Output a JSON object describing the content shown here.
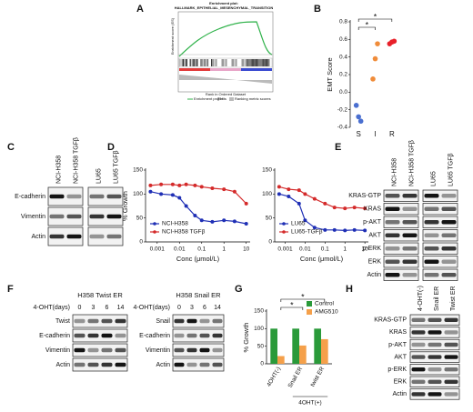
{
  "panel_labels": [
    "A",
    "B",
    "C",
    "D",
    "E",
    "F",
    "G",
    "H"
  ],
  "enrichment": {
    "title": "Enrichment plot:",
    "subtitle": "HALLMARK_EPITHELIAL_MESENCHYMAL_TRANSITION",
    "y_label": "Enrichment score (ES)",
    "x_label": "Rank in Ordered Dataset",
    "legend": [
      "Enrichment profile",
      "Hits",
      "Ranking metric scores"
    ]
  },
  "chart_data": [
    {
      "type": "scatter",
      "y_label": "EMT Score",
      "categories": [
        "S",
        "I",
        "R"
      ],
      "values": [
        [
          -0.15,
          -0.28,
          -0.33
        ],
        [
          0.15,
          0.38,
          0.55
        ],
        [
          0.55,
          0.57,
          0.58
        ]
      ],
      "colors": [
        "#4a6fd0",
        "#f08c3a",
        "#e8202a"
      ],
      "ylim": [
        -0.4,
        0.8
      ],
      "yticks": [
        -0.4,
        -0.2,
        {
          "value": 0,
          "label": "0.0"
        },
        0.2,
        0.4,
        0.6,
        0.8
      ],
      "annotations": [
        "*",
        "*"
      ]
    },
    {
      "type": "line",
      "x_log": true,
      "y_label": "% Growth",
      "x_label": "Conc (μmol/L)",
      "legend": "lower left",
      "x": [
        0.0005,
        0.0015,
        0.005,
        0.01,
        0.02,
        0.05,
        0.1,
        0.3,
        1,
        3,
        10
      ],
      "xlim": [
        0.0003,
        15
      ],
      "xticks": [
        0.001,
        0.01,
        0.1,
        1,
        10
      ],
      "ylim": [
        0,
        150
      ],
      "yticks": [
        0,
        50,
        100,
        150
      ],
      "series": [
        {
          "name": "NCI-H358",
          "color": "#1f2fb5",
          "values": [
            105,
            100,
            98,
            92,
            75,
            55,
            45,
            42,
            45,
            43,
            38
          ]
        },
        {
          "name": "NCI-H358 TGFβ",
          "color": "#d42a2a",
          "values": [
            118,
            120,
            120,
            118,
            120,
            118,
            115,
            112,
            110,
            105,
            80
          ]
        }
      ]
    },
    {
      "type": "line",
      "x_log": true,
      "x_label": "Conc (μmol/L)",
      "legend": "lower left",
      "x": [
        0.0005,
        0.0015,
        0.005,
        0.01,
        0.03,
        0.1,
        0.3,
        1,
        3,
        10
      ],
      "xlim": [
        0.0003,
        15
      ],
      "xticks": [
        0.001,
        0.01,
        0.1,
        1,
        10
      ],
      "ylim": [
        0,
        150
      ],
      "yticks": [
        0,
        50,
        100,
        150
      ],
      "series": [
        {
          "name": "LU65",
          "color": "#1f2fb5",
          "values": [
            100,
            95,
            80,
            45,
            30,
            25,
            25,
            24,
            25,
            24
          ]
        },
        {
          "name": "LU65-TGFβ",
          "color": "#d42a2a",
          "values": [
            115,
            110,
            108,
            100,
            90,
            80,
            72,
            70,
            72,
            70
          ]
        }
      ]
    },
    {
      "type": "bar",
      "y_label": "% Growth",
      "categories": [
        "4OHT(-)",
        "Snail ER",
        "twist ER"
      ],
      "group_label": "4OHT(+)",
      "legend": "upper right",
      "series": [
        {
          "name": "Control",
          "color": "#2a9a3a",
          "values": [
            100,
            100,
            100
          ]
        },
        {
          "name": "AMG510",
          "color": "#f5a04a",
          "values": [
            22,
            52,
            70
          ]
        }
      ],
      "ylim": [
        0,
        150
      ],
      "yticks": [
        0,
        50,
        100,
        150
      ],
      "annotations": [
        "*",
        "*"
      ]
    }
  ],
  "blots": [
    {
      "columns": [
        "NCI-H358",
        "NCI-H358 TGFβ",
        "LU65",
        "LU65 TGFβ"
      ],
      "rows": [
        "E-cadherin",
        "Vimentin",
        "Actin"
      ]
    },
    {
      "columns": [
        "NCI-H358",
        "NCI-H358 TGFβ",
        "LU65",
        "LU65 TGFβ"
      ],
      "rows": [
        "KRAS-GTP",
        "KRAS",
        "p-AKT",
        "AKT",
        "p-ERK",
        "ERK",
        "Actin"
      ]
    },
    {
      "title": "H358 Twist ER",
      "column_header": "4-OHT(days)",
      "columns": [
        "0",
        "3",
        "6",
        "14"
      ],
      "rows": [
        "Twist",
        "E-cadherin",
        "Vimentin",
        "Actin"
      ]
    },
    {
      "title": "H358 Snail ER",
      "column_header": "4-OHT(days)",
      "columns": [
        "0",
        "3",
        "6",
        "14"
      ],
      "rows": [
        "Snail",
        "E-cadherin",
        "Vimentin",
        "Actin"
      ]
    },
    {
      "columns": [
        "4-OHT(-)",
        "Snail ER",
        "Twist ER"
      ],
      "rows": [
        "KRAS-GTP",
        "KRAS",
        "p-AKT",
        "AKT",
        "p-ERK",
        "ERK",
        "Actin"
      ]
    }
  ]
}
